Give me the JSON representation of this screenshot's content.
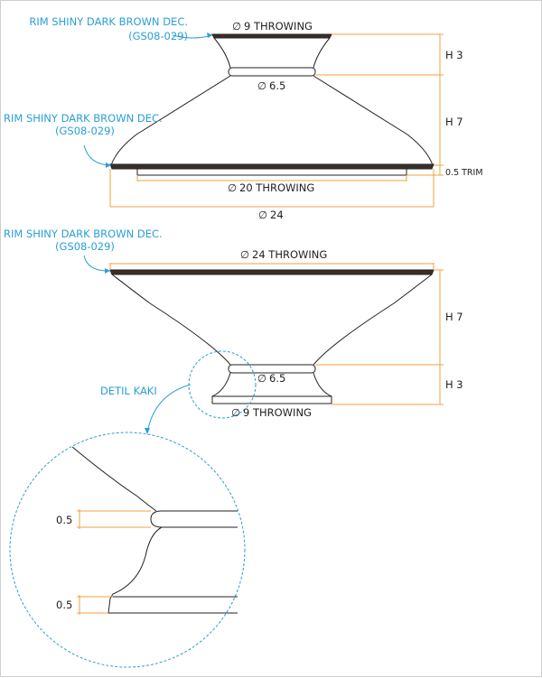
{
  "top_view": {
    "rim_note_top": "RIM SHINY DARK BROWN DEC.",
    "rim_note_top_code": "(GS08-029)",
    "rim_note_bottom": "RIM SHINY DARK BROWN DEC.",
    "rim_note_bottom_code": "(GS08-029)",
    "dia_top": "9 THROWING",
    "dia_neck": "6.5",
    "dia_base": "20 THROWING",
    "dia_overall": "24",
    "height_upper": "H 3",
    "height_lower": "H 7",
    "trim": "0.5 TRIM"
  },
  "bottom_view": {
    "rim_note": "RIM SHINY DARK BROWN DEC.",
    "rim_note_code": "(GS08-029)",
    "dia_top": "24 THROWING",
    "dia_neck": "6.5",
    "dia_base": "9 THROWING",
    "height_upper": "H 7",
    "height_lower": "H 3",
    "detail_label": "DETIL KAKI"
  },
  "detail": {
    "dim_upper": "0.5",
    "dim_lower": "0.5"
  },
  "symbols": {
    "diameter": "∅"
  },
  "colors": {
    "note": "#2a9fd6",
    "dimension": "#f0a040",
    "rim": "#3a2f2a",
    "line": "#222222"
  }
}
